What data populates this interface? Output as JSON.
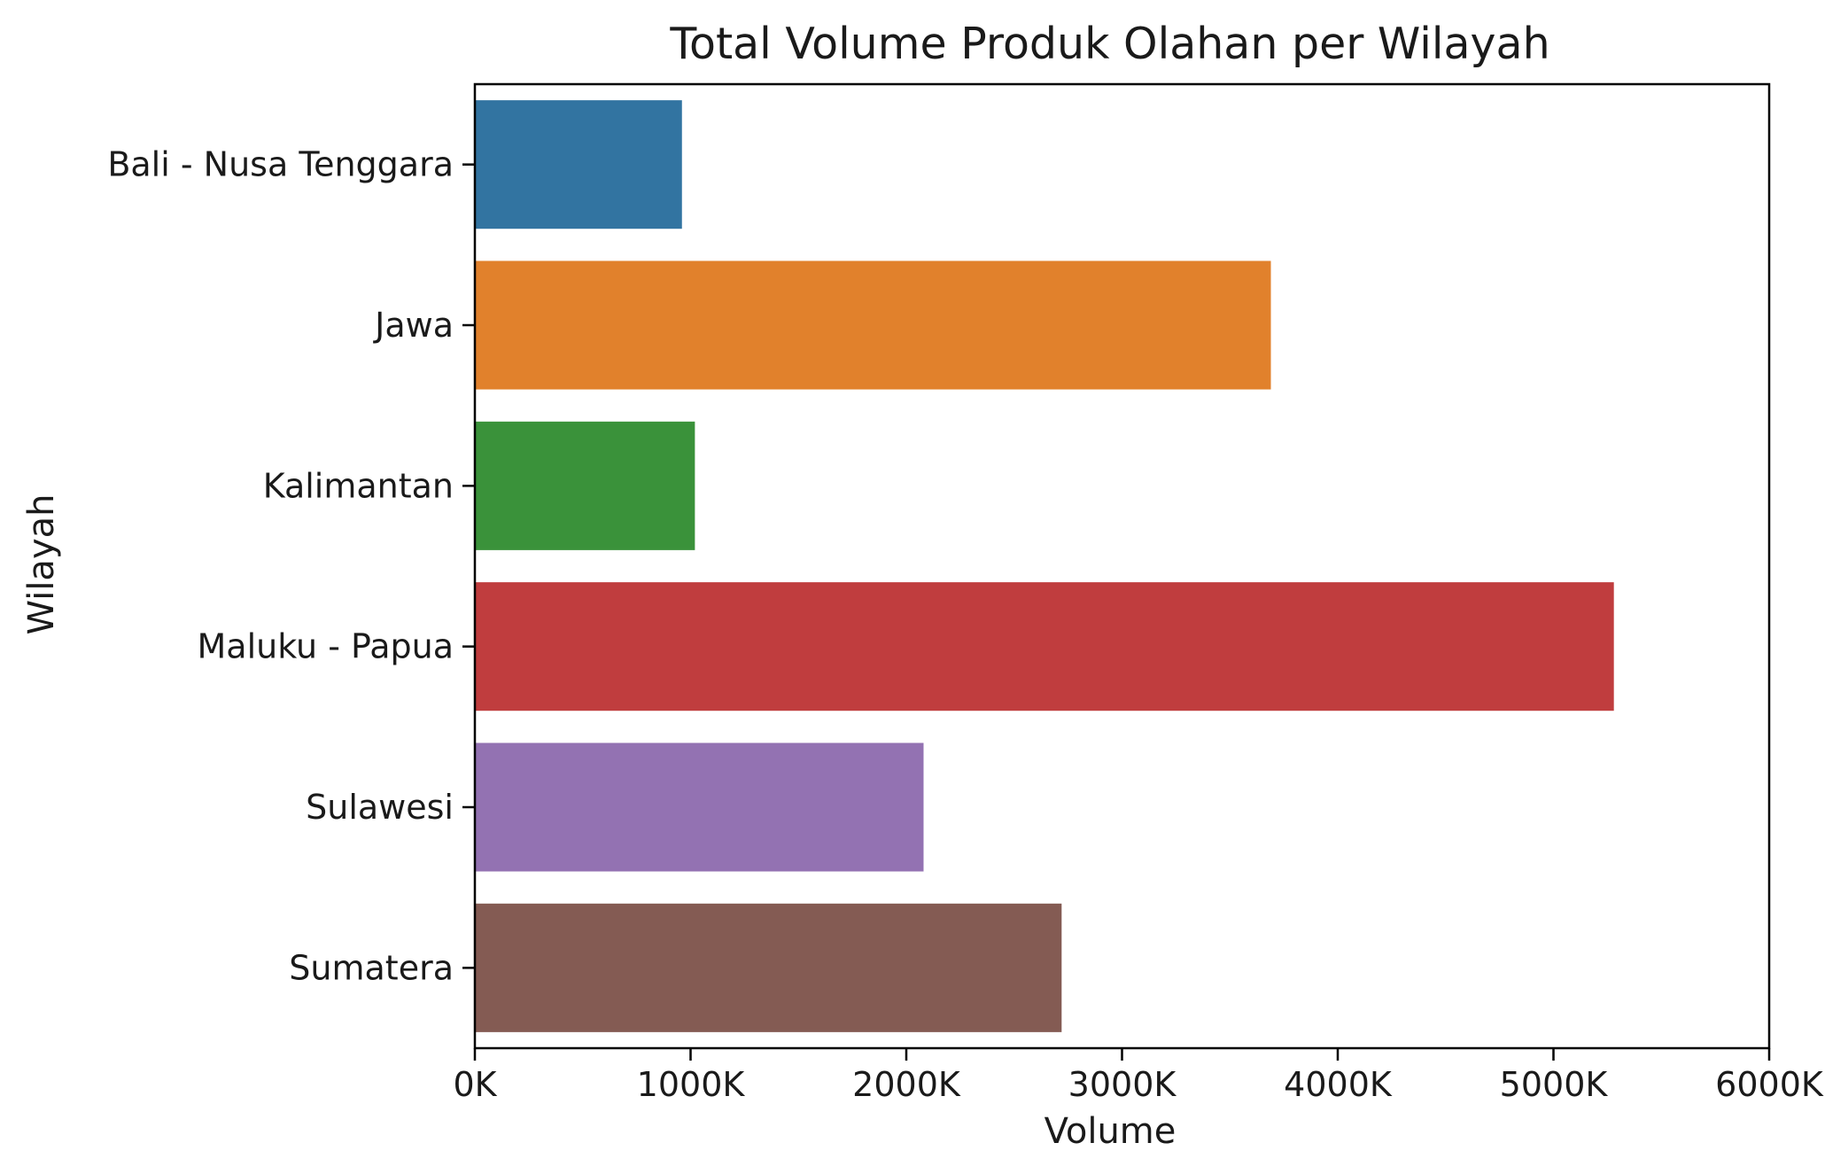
{
  "chart_data": {
    "type": "bar",
    "orientation": "horizontal",
    "title": "Total Volume Produk Olahan per Wilayah",
    "xlabel": "Volume",
    "ylabel": "Wilayah",
    "categories": [
      "Bali - Nusa Tenggara",
      "Jawa",
      "Kalimantan",
      "Maluku - Papua",
      "Sulawesi",
      "Sumatera"
    ],
    "values": [
      960000,
      3690000,
      1020000,
      5280000,
      2080000,
      2720000
    ],
    "colors": [
      "#3274a1",
      "#e1812c",
      "#3a923a",
      "#c03d3e",
      "#9372b2",
      "#845b53"
    ],
    "xlim": [
      0,
      6000000
    ],
    "xticks": [
      0,
      1000000,
      2000000,
      3000000,
      4000000,
      5000000,
      6000000
    ],
    "xtick_labels": [
      "0K",
      "1000K",
      "2000K",
      "3000K",
      "4000K",
      "5000K",
      "6000K"
    ],
    "grid": false,
    "legend": "none"
  }
}
